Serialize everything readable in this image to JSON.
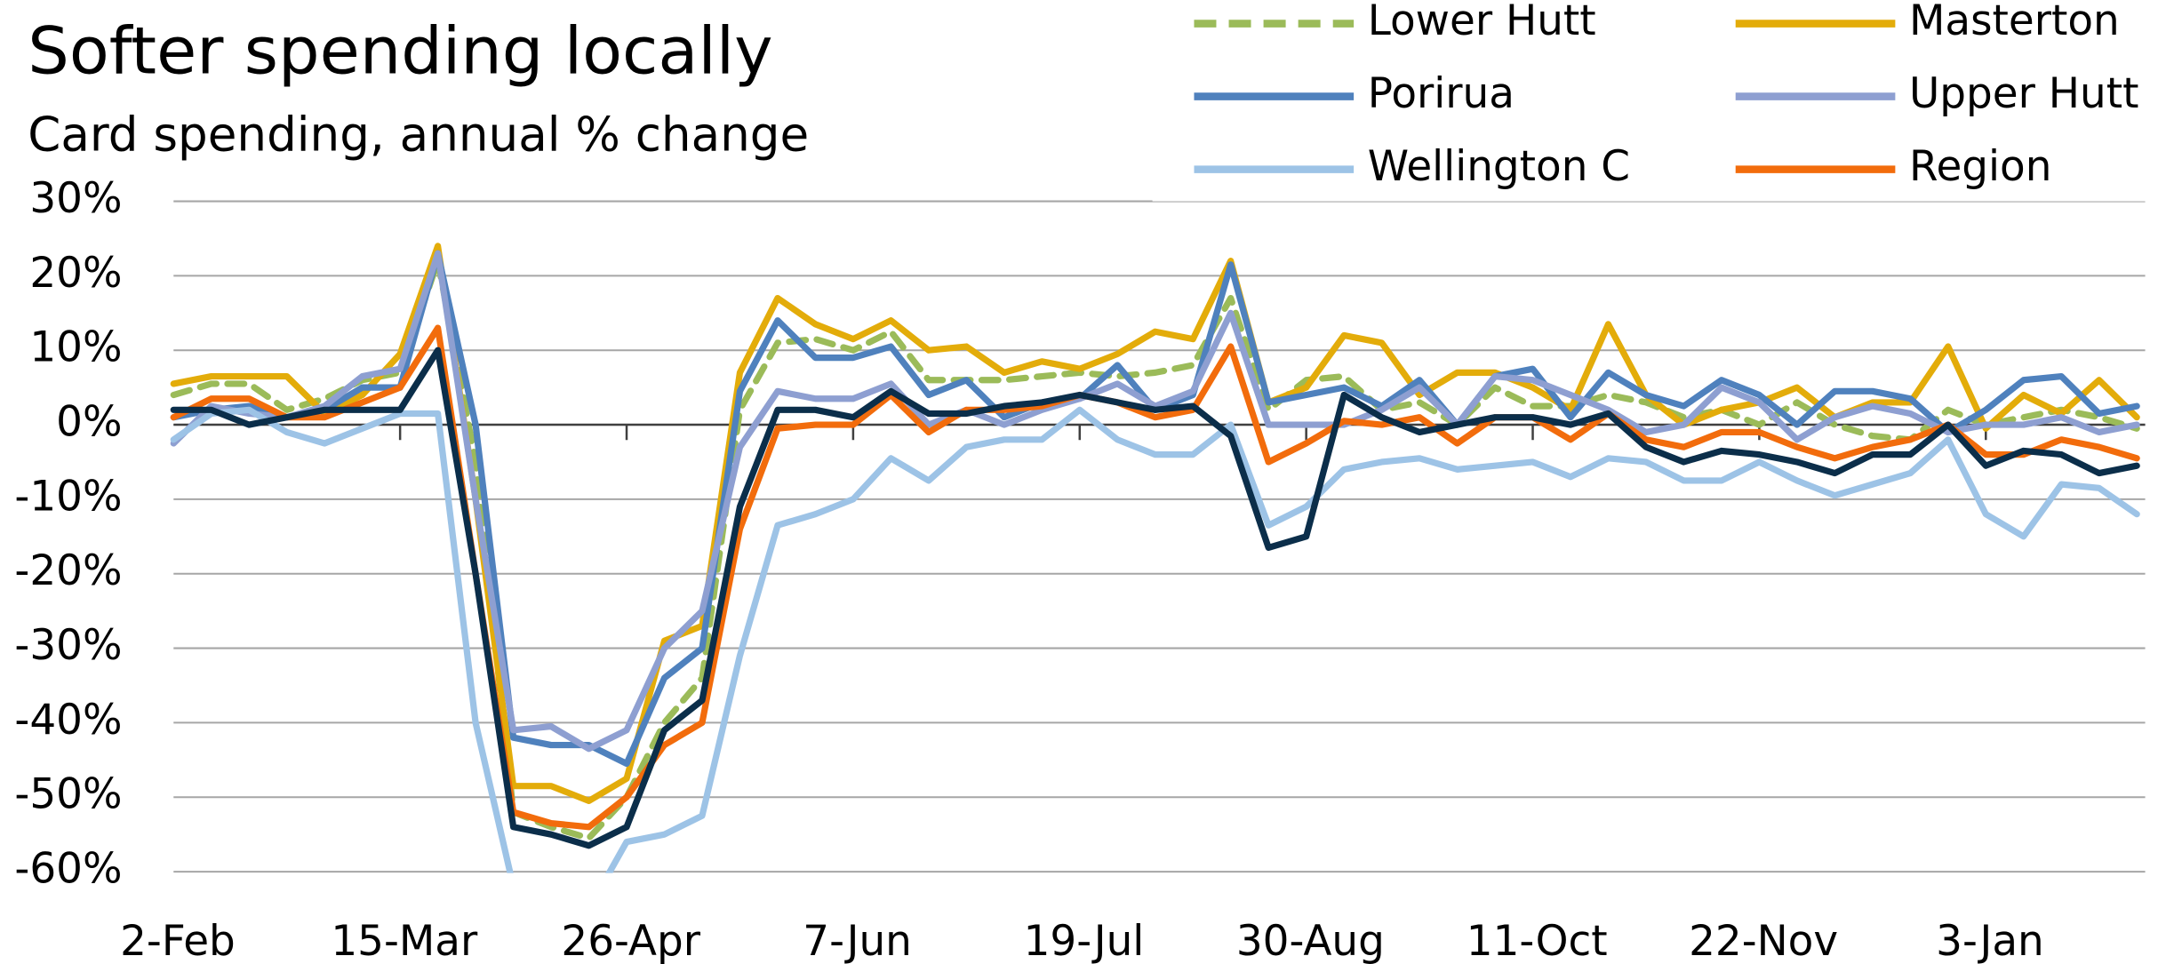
{
  "chart_data": {
    "type": "line",
    "title": "Softer spending locally",
    "subtitle": "Card spending, annual % change",
    "categories": [
      "2-Feb",
      null,
      null,
      null,
      null,
      null,
      "15-Mar",
      null,
      null,
      null,
      null,
      null,
      "26-Apr",
      null,
      null,
      null,
      null,
      null,
      "7-Jun",
      null,
      null,
      null,
      null,
      null,
      "19-Jul",
      null,
      null,
      null,
      null,
      null,
      "30-Aug",
      null,
      null,
      null,
      null,
      null,
      "11-Oct",
      null,
      null,
      null,
      null,
      null,
      "22-Nov",
      null,
      null,
      null,
      null,
      null,
      "3-Jan",
      null,
      null,
      null,
      null
    ],
    "ylim": [
      -60,
      30
    ],
    "yticks": [
      {
        "value": 30,
        "label": "30%"
      },
      {
        "value": 20,
        "label": "20%"
      },
      {
        "value": 10,
        "label": "10%"
      },
      {
        "value": 0,
        "label": "0%"
      },
      {
        "value": -10,
        "label": "-10%"
      },
      {
        "value": -20,
        "label": "-20%"
      },
      {
        "value": -30,
        "label": "-30%"
      },
      {
        "value": -40,
        "label": "-40%"
      },
      {
        "value": -50,
        "label": "-50%"
      },
      {
        "value": -60,
        "label": "-60%"
      }
    ],
    "grid": true,
    "legend": "top-right",
    "series": [
      {
        "name": "Lower Hutt",
        "color": "#9bbb59",
        "style": "dashed",
        "values": [
          4,
          5.5,
          5.5,
          2,
          3.5,
          6,
          7,
          22,
          -5,
          -52,
          -54,
          -55.5,
          -50,
          -40,
          -34,
          2,
          11,
          11.5,
          10,
          12.5,
          6,
          6,
          6,
          6.5,
          7,
          6.5,
          7,
          8,
          17,
          2,
          6,
          6.5,
          2,
          3,
          0,
          5,
          2.5,
          2.5,
          4,
          3,
          1,
          2,
          0,
          3,
          0,
          -1.5,
          -2,
          2,
          0,
          1,
          2,
          1,
          -0.5
        ]
      },
      {
        "name": "Masterton",
        "color": "#e3ac0a",
        "style": "solid",
        "values": [
          5.5,
          6.5,
          6.5,
          6.5,
          1.5,
          4,
          9.5,
          24,
          -10,
          -48.5,
          -48.5,
          -50.5,
          -47.5,
          -29,
          -27,
          7,
          17,
          13.5,
          11.5,
          14,
          10,
          10.5,
          7,
          8.5,
          7.5,
          9.5,
          12.5,
          11.5,
          22,
          3,
          5,
          12,
          11,
          4,
          7,
          7,
          5,
          2,
          13.5,
          4,
          0,
          2,
          3,
          5,
          1,
          3,
          3,
          10.5,
          -0.5,
          4,
          1.5,
          6,
          1
        ]
      },
      {
        "name": "Porirua",
        "color": "#4f81bd",
        "style": "solid",
        "values": [
          1,
          2,
          2.5,
          1,
          2,
          5,
          5,
          23,
          0,
          -42,
          -43,
          -43,
          -45.5,
          -34,
          -30,
          4.5,
          14,
          9,
          9,
          10.5,
          4,
          6,
          1,
          3,
          3.5,
          8,
          2,
          4,
          21.5,
          3,
          4,
          5,
          2.5,
          6,
          0,
          6.5,
          7.5,
          1,
          7,
          4,
          2.5,
          6,
          4,
          0,
          4.5,
          4.5,
          3.5,
          -1,
          2,
          6,
          6.5,
          1.5,
          2.5
        ]
      },
      {
        "name": "Upper Hutt",
        "color": "#8e9fd1",
        "style": "solid",
        "values": [
          -2.5,
          2.5,
          1.5,
          1,
          2.5,
          6.5,
          7.5,
          23,
          -10,
          -41,
          -40.5,
          -43.5,
          -41,
          -30,
          -25,
          -3,
          4.5,
          3.5,
          3.5,
          5.5,
          0,
          2,
          0,
          2,
          3.5,
          5.5,
          2.5,
          4.5,
          15,
          0,
          0,
          0,
          2,
          5,
          0,
          6.5,
          6,
          4,
          2,
          -1,
          0,
          5,
          3,
          -2,
          1,
          2.5,
          1.5,
          -1,
          0,
          0,
          1,
          -1,
          0
        ]
      },
      {
        "name": "Wellington C",
        "color": "#9dc3e6",
        "style": "solid",
        "values": [
          -2,
          1.5,
          2,
          -1,
          -2.5,
          -0.5,
          1.5,
          1.5,
          -40,
          -62,
          -65,
          -65,
          -56,
          -55,
          -52.5,
          -31,
          -13.5,
          -12,
          -10,
          -4.5,
          -7.5,
          -3,
          -2,
          -2,
          2,
          -2,
          -4,
          -4,
          0,
          -13.5,
          -11,
          -6,
          -5,
          -4.5,
          -6,
          -5.5,
          -5,
          -7,
          -4.5,
          -5,
          -7.5,
          -7.5,
          -5,
          -7.5,
          -9.5,
          -8,
          -6.5,
          -2,
          -12,
          -15,
          -8,
          -8.5,
          -12
        ]
      },
      {
        "name": "Region",
        "color": "#f26c0c",
        "style": "solid",
        "values": [
          1,
          3.5,
          3.5,
          1,
          1,
          3,
          5,
          13,
          -20,
          -52,
          -53.5,
          -54,
          -50,
          -43,
          -40,
          -14,
          -0.5,
          0,
          0,
          4,
          -1,
          2,
          2,
          2.5,
          4,
          3,
          1,
          2,
          10.5,
          -5,
          -2.5,
          0.5,
          0,
          1,
          -2.5,
          1,
          1,
          -2,
          1.5,
          -2,
          -3,
          -1,
          -1,
          -3,
          -4.5,
          -3,
          -2,
          0,
          -4,
          -4,
          -2,
          -3,
          -4.5
        ]
      },
      {
        "color": "#0b2e4a",
        "style": "solid",
        "values": [
          2,
          2,
          0,
          1,
          2,
          2,
          2,
          10,
          -20,
          -54,
          -55,
          -56.5,
          -54,
          -41,
          -37,
          -11,
          2,
          2,
          1,
          4.5,
          1.5,
          1.5,
          2.5,
          3,
          4,
          3,
          2,
          2.5,
          -1.5,
          -16.5,
          -15,
          4,
          1,
          -1,
          0,
          1,
          1,
          0,
          1.5,
          -3,
          -5,
          -3.5,
          -4,
          -5,
          -6.5,
          -4,
          -4,
          0,
          -5.5,
          -3.5,
          -4,
          -6.5,
          -5.5
        ]
      }
    ]
  }
}
